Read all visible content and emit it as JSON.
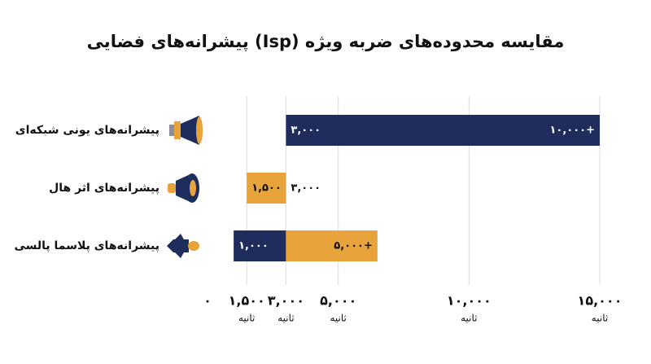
{
  "chart_data": {
    "type": "range-bar",
    "title": "مقایسه محدوده‌های ضربه ویژه (Isp) پیشرانه‌های فضایی",
    "categories": [
      "پیشرانه‌های یونی شبکه‌ای",
      "پیشرانه‌های اثر هال",
      "پیشرانه‌های پلاسما پالسی"
    ],
    "bars": [
      [
        {
          "start": 3000,
          "end": 15000,
          "color": "#1e2d5c",
          "start_label": "۳,۰۰۰",
          "end_label": "۱۰,۰۰۰+"
        }
      ],
      [
        {
          "start": 1500,
          "end": 3000,
          "color": "#e8a33a",
          "start_label": "۱,۵۰۰",
          "end_label": "۳,۰۰۰"
        }
      ],
      [
        {
          "start": 1000,
          "end": 3000,
          "color": "#1e2d5c",
          "start_label": "۱,۰۰۰"
        },
        {
          "start": 3000,
          "end": 6500,
          "color": "#e8a33a",
          "end_label": "۵,۰۰۰+"
        }
      ]
    ],
    "xlim": [
      0,
      15000
    ],
    "xticks": [
      {
        "value": 0,
        "label": "۰"
      },
      {
        "value": 1500,
        "label": "۱,۵۰۰"
      },
      {
        "value": 3000,
        "label": "۳,۰۰۰"
      },
      {
        "value": 5000,
        "label": "۵,۰۰۰"
      },
      {
        "value": 10000,
        "label": "۱۰,۰۰۰"
      },
      {
        "value": 15000,
        "label": "۱۵,۰۰۰"
      }
    ],
    "xtick_unit": "ثانیه",
    "grid": true
  }
}
